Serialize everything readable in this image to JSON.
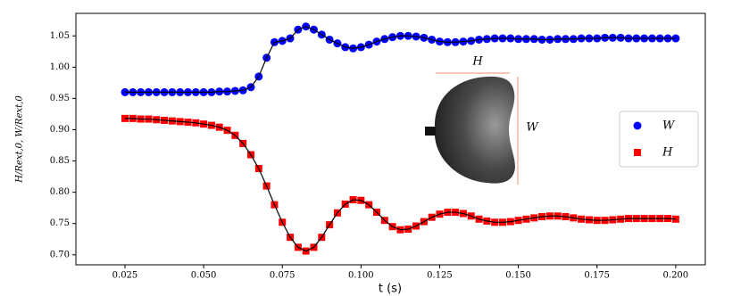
{
  "chart_data": {
    "type": "scatter",
    "xlabel": "t (s)",
    "ylabel": "H/Rext,0, W/Rext,0",
    "x": [
      0.025,
      0.0275,
      0.03,
      0.0325,
      0.035,
      0.0375,
      0.04,
      0.0425,
      0.045,
      0.0475,
      0.05,
      0.0525,
      0.055,
      0.0575,
      0.06,
      0.0625,
      0.065,
      0.0675,
      0.07,
      0.0725,
      0.075,
      0.0775,
      0.08,
      0.0825,
      0.085,
      0.0875,
      0.09,
      0.0925,
      0.095,
      0.0975,
      0.1,
      0.1025,
      0.105,
      0.1075,
      0.11,
      0.1125,
      0.115,
      0.1175,
      0.12,
      0.1225,
      0.125,
      0.1275,
      0.13,
      0.1325,
      0.135,
      0.1375,
      0.14,
      0.1425,
      0.145,
      0.1475,
      0.15,
      0.1525,
      0.155,
      0.1575,
      0.16,
      0.1625,
      0.165,
      0.1675,
      0.17,
      0.1725,
      0.175,
      0.1775,
      0.18,
      0.1825,
      0.185,
      0.1875,
      0.19,
      0.1925,
      0.195,
      0.1975,
      0.2
    ],
    "series": [
      {
        "name": "W",
        "color": "#0000ff",
        "marker": "circle",
        "values": [
          0.96,
          0.96,
          0.96,
          0.96,
          0.96,
          0.96,
          0.96,
          0.96,
          0.96,
          0.96,
          0.96,
          0.96,
          0.961,
          0.961,
          0.962,
          0.963,
          0.968,
          0.985,
          1.015,
          1.04,
          1.042,
          1.046,
          1.06,
          1.065,
          1.06,
          1.052,
          1.044,
          1.038,
          1.032,
          1.03,
          1.032,
          1.036,
          1.041,
          1.045,
          1.048,
          1.05,
          1.05,
          1.049,
          1.047,
          1.044,
          1.041,
          1.04,
          1.04,
          1.041,
          1.042,
          1.044,
          1.045,
          1.046,
          1.046,
          1.046,
          1.045,
          1.045,
          1.045,
          1.044,
          1.044,
          1.045,
          1.045,
          1.045,
          1.046,
          1.046,
          1.046,
          1.047,
          1.047,
          1.047,
          1.046,
          1.046,
          1.046,
          1.046,
          1.046,
          1.046,
          1.046
        ]
      },
      {
        "name": "H",
        "color": "#ff0000",
        "marker": "square",
        "values": [
          0.918,
          0.918,
          0.917,
          0.917,
          0.916,
          0.915,
          0.914,
          0.913,
          0.912,
          0.911,
          0.909,
          0.907,
          0.904,
          0.899,
          0.891,
          0.878,
          0.86,
          0.838,
          0.81,
          0.78,
          0.752,
          0.728,
          0.712,
          0.706,
          0.712,
          0.728,
          0.748,
          0.767,
          0.781,
          0.788,
          0.787,
          0.78,
          0.768,
          0.755,
          0.745,
          0.74,
          0.741,
          0.746,
          0.753,
          0.76,
          0.765,
          0.768,
          0.768,
          0.766,
          0.762,
          0.757,
          0.754,
          0.752,
          0.752,
          0.753,
          0.755,
          0.757,
          0.759,
          0.761,
          0.762,
          0.762,
          0.761,
          0.759,
          0.757,
          0.756,
          0.755,
          0.755,
          0.756,
          0.757,
          0.758,
          0.758,
          0.758,
          0.758,
          0.758,
          0.758,
          0.757
        ]
      }
    ],
    "fit_line_color": "#000000",
    "xlim": [
      0.0094,
      0.2094
    ],
    "ylim": [
      0.684,
      1.086
    ],
    "xticks": [
      0.025,
      {
        "value": 0.05,
        "label": "0.050"
      },
      0.075,
      {
        "value": 0.1,
        "label": "0.100"
      },
      0.125,
      {
        "value": 0.15,
        "label": "0.150"
      },
      0.175,
      {
        "value": 0.2,
        "label": "0.200"
      }
    ],
    "yticks": [
      {
        "value": 0.7,
        "label": "0.70"
      },
      0.75,
      {
        "value": 0.8,
        "label": "0.80"
      },
      0.85,
      {
        "value": 0.9,
        "label": "0.90"
      },
      0.95,
      {
        "value": 1.0,
        "label": "1.00"
      },
      1.05
    ],
    "legend": "center right",
    "annotations": [
      "H",
      "W"
    ]
  }
}
